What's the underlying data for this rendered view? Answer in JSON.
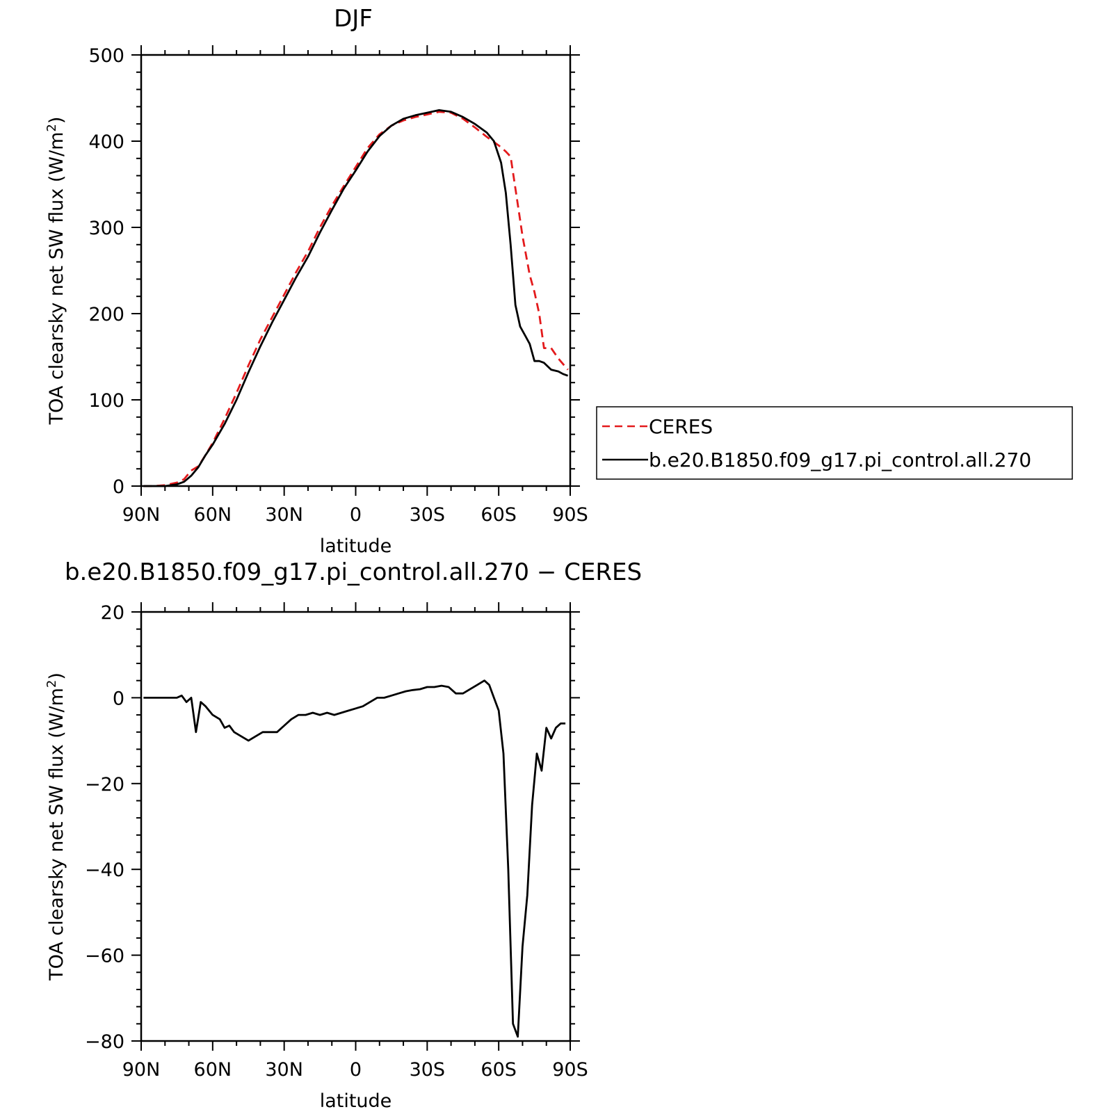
{
  "colors": {
    "ceres": "#e31a1c",
    "model": "#000000"
  },
  "legend": {
    "entries": [
      {
        "name": "CERES",
        "style": "dashed",
        "color": "#e31a1c"
      },
      {
        "name": "b.e20.B1850.f09_g17.pi_control.all.270",
        "style": "solid",
        "color": "#000000"
      }
    ]
  },
  "chart_data": [
    {
      "type": "line",
      "title": "DJF",
      "xlabel": "latitude",
      "ylabel_main": "TOA clearsky net SW flux (W/m",
      "ylabel_sup": "2",
      "ylabel_close": ")",
      "xlim": [
        90,
        -90
      ],
      "ylim": [
        0,
        500
      ],
      "xticks": [
        90,
        60,
        30,
        0,
        -30,
        -60,
        -90
      ],
      "xtick_labels": [
        "90N",
        "60N",
        "30N",
        "0",
        "30S",
        "60S",
        "90S"
      ],
      "yticks": [
        0,
        100,
        200,
        300,
        400,
        500
      ],
      "ytick_labels": [
        "0",
        "100",
        "200",
        "300",
        "400",
        "500"
      ],
      "grid": false,
      "legend_position": "right",
      "series": [
        {
          "name": "CERES",
          "style": "dashed",
          "x": [
            89,
            85,
            80,
            75,
            72,
            69,
            66,
            63,
            60,
            55,
            50,
            45,
            40,
            35,
            30,
            25,
            20,
            15,
            10,
            5,
            0,
            -5,
            -10,
            -15,
            -20,
            -25,
            -30,
            -35,
            -40,
            -45,
            -50,
            -55,
            -60,
            -63,
            -65,
            -67,
            -70,
            -73,
            -75,
            -77,
            -79,
            -82,
            -85,
            -89
          ],
          "y": [
            0,
            0,
            1,
            4,
            8,
            18,
            23,
            36,
            50,
            78,
            108,
            140,
            170,
            196,
            222,
            248,
            272,
            300,
            325,
            348,
            370,
            392,
            408,
            418,
            424,
            428,
            431,
            434,
            433,
            426,
            416,
            405,
            395,
            388,
            382,
            345,
            290,
            245,
            225,
            200,
            160,
            160,
            148,
            135
          ]
        },
        {
          "name": "b.e20.B1850.f09_g17.pi_control.all.270",
          "style": "solid",
          "x": [
            89,
            85,
            80,
            75,
            72,
            69,
            66,
            63,
            60,
            55,
            50,
            45,
            40,
            35,
            30,
            25,
            20,
            15,
            10,
            5,
            0,
            -5,
            -10,
            -15,
            -20,
            -25,
            -30,
            -35,
            -40,
            -45,
            -50,
            -55,
            -58,
            -61,
            -63,
            -65,
            -67,
            -69,
            -71,
            -73,
            -75,
            -77,
            -79,
            -82,
            -85,
            -87,
            -89
          ],
          "y": [
            0,
            0,
            0,
            2,
            5,
            12,
            22,
            36,
            48,
            72,
            100,
            132,
            162,
            190,
            216,
            242,
            266,
            294,
            320,
            345,
            366,
            388,
            406,
            418,
            426,
            430,
            433,
            436,
            434,
            428,
            420,
            410,
            400,
            375,
            340,
            280,
            210,
            185,
            175,
            165,
            145,
            145,
            143,
            135,
            133,
            130,
            128
          ]
        }
      ]
    },
    {
      "type": "line",
      "title": "b.e20.B1850.f09_g17.pi_control.all.270 − CERES",
      "xlabel": "latitude",
      "ylabel_main": "TOA clearsky net SW flux (W/m",
      "ylabel_sup": "2",
      "ylabel_close": ")",
      "xlim": [
        90,
        -90
      ],
      "ylim": [
        -80,
        20
      ],
      "xticks": [
        90,
        60,
        30,
        0,
        -30,
        -60,
        -90
      ],
      "xtick_labels": [
        "90N",
        "60N",
        "30N",
        "0",
        "30S",
        "60S",
        "90S"
      ],
      "yticks": [
        -80,
        -60,
        -40,
        -20,
        0,
        20
      ],
      "ytick_labels": [
        "−80",
        "−60",
        "−40",
        "−20",
        "0",
        "20"
      ],
      "grid": false,
      "series": [
        {
          "name": "b.e20.B1850.f09_g17.pi_control.all.270 − CERES",
          "style": "solid",
          "x": [
            89,
            80,
            75,
            73,
            71,
            69,
            67,
            65,
            63,
            60,
            57,
            55,
            53,
            51,
            48,
            45,
            42,
            39,
            36,
            33,
            30,
            27,
            24,
            21,
            18,
            15,
            12,
            9,
            6,
            3,
            0,
            -3,
            -6,
            -9,
            -12,
            -15,
            -18,
            -21,
            -24,
            -27,
            -30,
            -33,
            -36,
            -39,
            -42,
            -45,
            -48,
            -51,
            -54,
            -56,
            -58,
            -60,
            -62,
            -64,
            -66,
            -68,
            -70,
            -72,
            -74,
            -76,
            -78,
            -80,
            -82,
            -84,
            -86,
            -88
          ],
          "y": [
            0,
            0,
            0,
            0.5,
            -1,
            0,
            -8,
            -1,
            -2,
            -4,
            -5,
            -7,
            -6.5,
            -8,
            -9,
            -10,
            -9,
            -8,
            -8,
            -8,
            -6.5,
            -5,
            -4,
            -4,
            -3.5,
            -4,
            -3.5,
            -4,
            -3.5,
            -3,
            -2.5,
            -2,
            -1,
            0,
            0,
            0.5,
            1,
            1.5,
            1.8,
            2,
            2.5,
            2.5,
            2.8,
            2.5,
            1,
            1,
            2,
            3,
            4,
            3,
            0,
            -3,
            -13,
            -40,
            -76,
            -79,
            -58,
            -46,
            -25,
            -13,
            -17,
            -7,
            -9.5,
            -7,
            -6,
            -6
          ]
        }
      ]
    }
  ]
}
